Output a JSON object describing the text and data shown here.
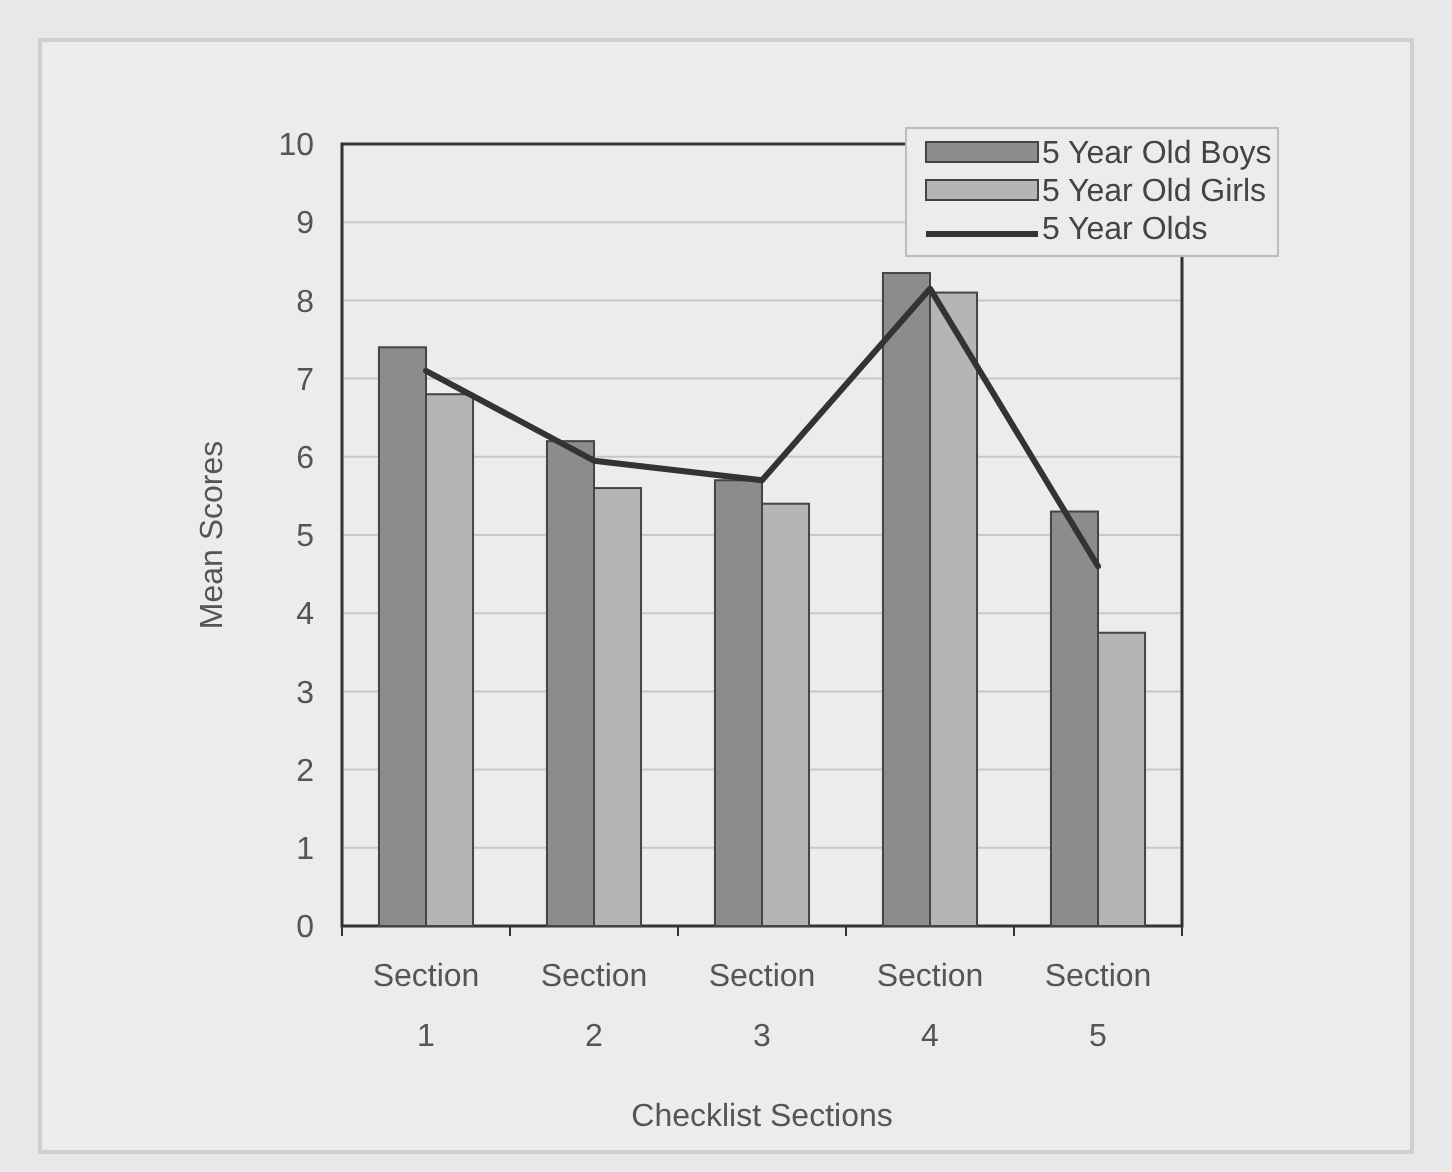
{
  "chart_data": {
    "type": "bar",
    "xlabel": "Checklist Sections",
    "ylabel": "Mean Scores",
    "categories": [
      "Section 1",
      "Section 2",
      "Section 3",
      "Section 4",
      "Section 5"
    ],
    "series": [
      {
        "name": "5 Year Old Boys",
        "color": "#8c8c8c",
        "values": [
          7.4,
          6.2,
          5.7,
          8.35,
          5.3
        ]
      },
      {
        "name": "5 Year Old Girls",
        "color": "#b5b5b5",
        "values": [
          6.8,
          5.6,
          5.4,
          8.1,
          3.75
        ]
      },
      {
        "name": "5 Year Olds",
        "type": "line",
        "color": "#333333",
        "values": [
          7.1,
          5.95,
          5.7,
          8.15,
          4.6
        ]
      }
    ],
    "ylim": [
      0,
      10
    ],
    "yticks": [
      0,
      1,
      2,
      3,
      4,
      5,
      6,
      7,
      8,
      9,
      10
    ],
    "grid": "y",
    "legend": "top right"
  }
}
